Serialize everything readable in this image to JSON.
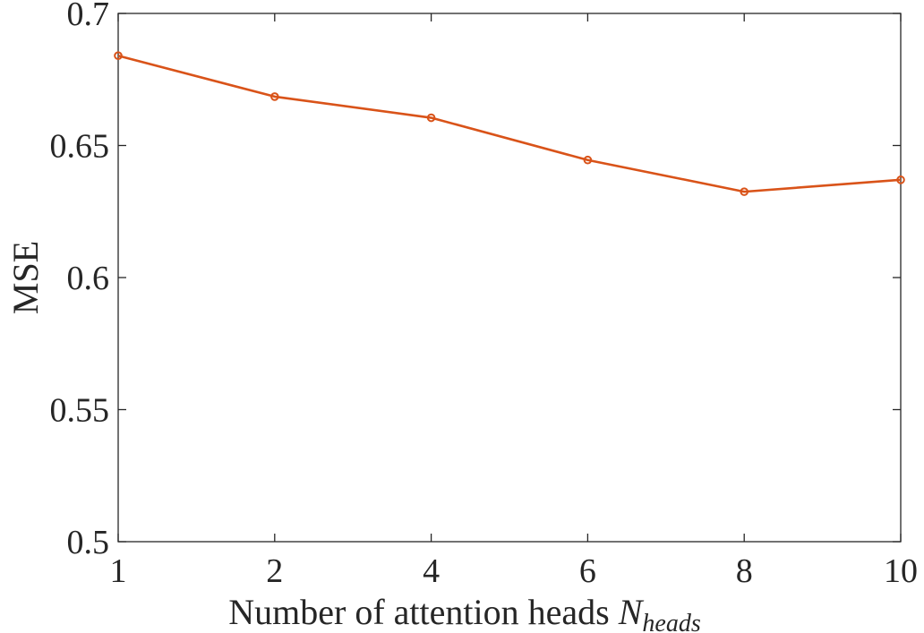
{
  "chart_data": {
    "type": "line",
    "categories": [
      "1",
      "2",
      "4",
      "6",
      "8",
      "10"
    ],
    "series": [
      {
        "values": [
          0.684,
          0.6685,
          0.6605,
          0.6445,
          0.6325,
          0.637
        ],
        "color": "#D95319"
      }
    ],
    "xlabel": {
      "text": "Number of attention heads ",
      "symbol": "N",
      "subscript": "heads"
    },
    "ylabel": "MSE",
    "ylim": [
      0.5,
      0.7
    ],
    "yticks": [
      "0.5",
      "0.55",
      "0.6",
      "0.65",
      "0.7"
    ],
    "grid": false,
    "box": true
  }
}
